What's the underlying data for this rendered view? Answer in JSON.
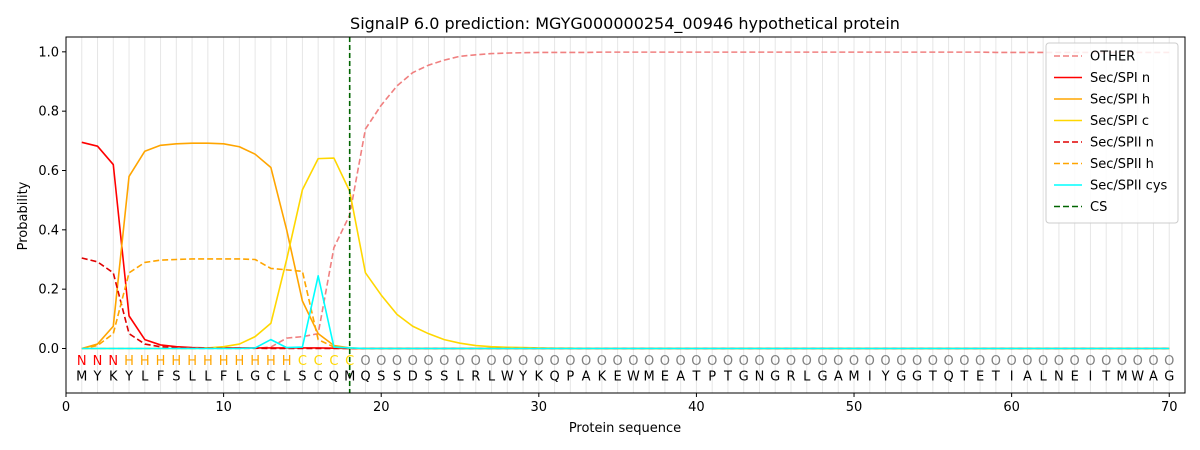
{
  "chart_data": {
    "type": "line",
    "title": "SignalP 6.0 prediction: MGYG000000254_00946 hypothetical protein",
    "xlabel": "Protein sequence",
    "ylabel": "Probability",
    "xlim": [
      0,
      71
    ],
    "ylim": [
      -0.15,
      1.05
    ],
    "xticks": [
      0,
      10,
      20,
      30,
      40,
      50,
      60,
      70
    ],
    "yticks": [
      0.0,
      0.2,
      0.4,
      0.6,
      0.8,
      1.0
    ],
    "ytick_labels": [
      "0.0",
      "0.2",
      "0.4",
      "0.6",
      "0.8",
      "1.0"
    ],
    "legend_position": "top-right",
    "cleavage_site": 18,
    "sequence": [
      "M",
      "Y",
      "K",
      "Y",
      "L",
      "F",
      "S",
      "L",
      "L",
      "F",
      "L",
      "G",
      "C",
      "L",
      "S",
      "C",
      "Q",
      "M",
      "Q",
      "S",
      "S",
      "D",
      "S",
      "S",
      "L",
      "R",
      "L",
      "W",
      "Y",
      "K",
      "Q",
      "P",
      "A",
      "K",
      "E",
      "W",
      "M",
      "E",
      "A",
      "T",
      "P",
      "T",
      "G",
      "N",
      "G",
      "R",
      "L",
      "G",
      "A",
      "M",
      "I",
      "Y",
      "G",
      "G",
      "T",
      "Q",
      "T",
      "E",
      "T",
      "I",
      "A",
      "L",
      "N",
      "E",
      "I",
      "T",
      "M",
      "W",
      "A",
      "G"
    ],
    "labels": [
      "N",
      "N",
      "N",
      "H",
      "H",
      "H",
      "H",
      "H",
      "H",
      "H",
      "H",
      "H",
      "H",
      "H",
      "C",
      "C",
      "C",
      "C",
      "O",
      "O",
      "O",
      "O",
      "O",
      "O",
      "O",
      "O",
      "O",
      "O",
      "O",
      "O",
      "O",
      "O",
      "O",
      "O",
      "O",
      "O",
      "O",
      "O",
      "O",
      "O",
      "O",
      "O",
      "O",
      "O",
      "O",
      "O",
      "O",
      "O",
      "O",
      "O",
      "O",
      "O",
      "O",
      "O",
      "O",
      "O",
      "O",
      "O",
      "O",
      "O",
      "O",
      "O",
      "O",
      "O",
      "O",
      "O",
      "O",
      "O",
      "O",
      "O"
    ],
    "label_colors": {
      "N": "#ff0000",
      "H": "#ffa500",
      "C": "#ffd700",
      "O": "#808080"
    },
    "series": [
      {
        "name": "OTHER",
        "color": "#f08080",
        "dash": true,
        "values": [
          0.0,
          0.0,
          0.0,
          0.0,
          0.0,
          0.0,
          0.0,
          0.0,
          0.0,
          0.0,
          0.0,
          0.0,
          0.005,
          0.035,
          0.04,
          0.05,
          0.34,
          0.45,
          0.74,
          0.82,
          0.885,
          0.93,
          0.955,
          0.972,
          0.985,
          0.99,
          0.994,
          0.996,
          0.997,
          0.998,
          0.998,
          0.998,
          0.998,
          0.999,
          0.999,
          0.999,
          0.999,
          0.999,
          0.999,
          0.999,
          0.999,
          0.999,
          0.999,
          0.999,
          0.999,
          0.999,
          0.999,
          0.999,
          0.999,
          0.999,
          0.999,
          0.999,
          0.999,
          0.999,
          0.999,
          0.999,
          0.999,
          0.999,
          0.998,
          0.998,
          0.998,
          0.998,
          0.998,
          0.998,
          0.998,
          0.998,
          0.998,
          0.998,
          0.998,
          0.998
        ]
      },
      {
        "name": "Sec/SPI n",
        "color": "#ff0000",
        "dash": false,
        "values": [
          0.695,
          0.682,
          0.62,
          0.11,
          0.03,
          0.012,
          0.006,
          0.003,
          0.002,
          0.002,
          0.002,
          0.002,
          0.002,
          0.002,
          0.002,
          0.002,
          0.001,
          0.0,
          0.0,
          0.0,
          0.0,
          0.0,
          0.0,
          0.0,
          0.0,
          0.0,
          0.0,
          0.0,
          0.0,
          0.0,
          0.0,
          0.0,
          0.0,
          0.0,
          0.0,
          0.0,
          0.0,
          0.0,
          0.0,
          0.0,
          0.0,
          0.0,
          0.0,
          0.0,
          0.0,
          0.0,
          0.0,
          0.0,
          0.0,
          0.0,
          0.0,
          0.0,
          0.0,
          0.0,
          0.0,
          0.0,
          0.0,
          0.0,
          0.0,
          0.0,
          0.0,
          0.0,
          0.0,
          0.0,
          0.0,
          0.0,
          0.0,
          0.0,
          0.0,
          0.0
        ]
      },
      {
        "name": "Sec/SPI h",
        "color": "#ffa500",
        "dash": false,
        "values": [
          0.0,
          0.015,
          0.075,
          0.58,
          0.665,
          0.685,
          0.69,
          0.692,
          0.692,
          0.69,
          0.68,
          0.655,
          0.61,
          0.4,
          0.16,
          0.05,
          0.01,
          0.002,
          0.0,
          0.0,
          0.0,
          0.0,
          0.0,
          0.0,
          0.0,
          0.0,
          0.0,
          0.0,
          0.0,
          0.0,
          0.0,
          0.0,
          0.0,
          0.0,
          0.0,
          0.0,
          0.0,
          0.0,
          0.0,
          0.0,
          0.0,
          0.0,
          0.0,
          0.0,
          0.0,
          0.0,
          0.0,
          0.0,
          0.0,
          0.0,
          0.0,
          0.0,
          0.0,
          0.0,
          0.0,
          0.0,
          0.0,
          0.0,
          0.0,
          0.0,
          0.0,
          0.0,
          0.0,
          0.0,
          0.0,
          0.0,
          0.0,
          0.0,
          0.0,
          0.0
        ]
      },
      {
        "name": "Sec/SPI c",
        "color": "#ffd700",
        "dash": false,
        "values": [
          0.0,
          0.0,
          0.0,
          0.0,
          0.0,
          0.0,
          0.0,
          0.0,
          0.002,
          0.006,
          0.015,
          0.04,
          0.085,
          0.3,
          0.535,
          0.64,
          0.642,
          0.53,
          0.255,
          0.18,
          0.115,
          0.075,
          0.05,
          0.03,
          0.018,
          0.01,
          0.006,
          0.004,
          0.003,
          0.002,
          0.001,
          0.001,
          0.0,
          0.0,
          0.0,
          0.0,
          0.0,
          0.0,
          0.0,
          0.0,
          0.0,
          0.0,
          0.0,
          0.0,
          0.0,
          0.0,
          0.0,
          0.0,
          0.0,
          0.0,
          0.0,
          0.0,
          0.0,
          0.0,
          0.0,
          0.0,
          0.0,
          0.0,
          0.0,
          0.0,
          0.0,
          0.0,
          0.0,
          0.0,
          0.0,
          0.0,
          0.0,
          0.0,
          0.0,
          0.0
        ]
      },
      {
        "name": "Sec/SPII n",
        "color": "#e00000",
        "dash": true,
        "values": [
          0.305,
          0.292,
          0.255,
          0.05,
          0.015,
          0.006,
          0.003,
          0.002,
          0.001,
          0.001,
          0.001,
          0.001,
          0.0,
          0.0,
          0.0,
          0.0,
          0.0,
          0.0,
          0.0,
          0.0,
          0.0,
          0.0,
          0.0,
          0.0,
          0.0,
          0.0,
          0.0,
          0.0,
          0.0,
          0.0,
          0.0,
          0.0,
          0.0,
          0.0,
          0.0,
          0.0,
          0.0,
          0.0,
          0.0,
          0.0,
          0.0,
          0.0,
          0.0,
          0.0,
          0.0,
          0.0,
          0.0,
          0.0,
          0.0,
          0.0,
          0.0,
          0.0,
          0.0,
          0.0,
          0.0,
          0.0,
          0.0,
          0.0,
          0.0,
          0.0,
          0.0,
          0.0,
          0.0,
          0.0,
          0.0,
          0.0,
          0.0,
          0.0,
          0.0,
          0.0
        ]
      },
      {
        "name": "Sec/SPII h",
        "color": "#ffa500",
        "dash": true,
        "values": [
          0.0,
          0.01,
          0.05,
          0.255,
          0.29,
          0.298,
          0.3,
          0.302,
          0.302,
          0.302,
          0.302,
          0.3,
          0.27,
          0.265,
          0.26,
          0.03,
          0.005,
          0.001,
          0.0,
          0.0,
          0.0,
          0.0,
          0.0,
          0.0,
          0.0,
          0.0,
          0.0,
          0.0,
          0.0,
          0.0,
          0.0,
          0.0,
          0.0,
          0.0,
          0.0,
          0.0,
          0.0,
          0.0,
          0.0,
          0.0,
          0.0,
          0.0,
          0.0,
          0.0,
          0.0,
          0.0,
          0.0,
          0.0,
          0.0,
          0.0,
          0.0,
          0.0,
          0.0,
          0.0,
          0.0,
          0.0,
          0.0,
          0.0,
          0.0,
          0.0,
          0.0,
          0.0,
          0.0,
          0.0,
          0.0,
          0.0,
          0.0,
          0.0,
          0.0,
          0.0
        ]
      },
      {
        "name": "Sec/SPII cys",
        "color": "#00ffff",
        "dash": false,
        "values": [
          0.0,
          0.0,
          0.0,
          0.0,
          0.0,
          0.0,
          0.0,
          0.0,
          0.0,
          0.0,
          0.0,
          0.002,
          0.03,
          0.003,
          0.005,
          0.245,
          0.005,
          0.002,
          0.0,
          0.0,
          0.0,
          0.0,
          0.0,
          0.0,
          0.0,
          0.0,
          0.0,
          0.0,
          0.0,
          0.0,
          0.0,
          0.0,
          0.0,
          0.0,
          0.0,
          0.0,
          0.0,
          0.0,
          0.0,
          0.0,
          0.0,
          0.0,
          0.0,
          0.0,
          0.0,
          0.0,
          0.0,
          0.0,
          0.0,
          0.0,
          0.0,
          0.0,
          0.0,
          0.0,
          0.0,
          0.0,
          0.0,
          0.0,
          0.0,
          0.0,
          0.0,
          0.0,
          0.0,
          0.0,
          0.0,
          0.0,
          0.0,
          0.0,
          0.0,
          0.0
        ]
      }
    ],
    "cs_legend": {
      "name": "CS",
      "color": "#006400"
    }
  }
}
